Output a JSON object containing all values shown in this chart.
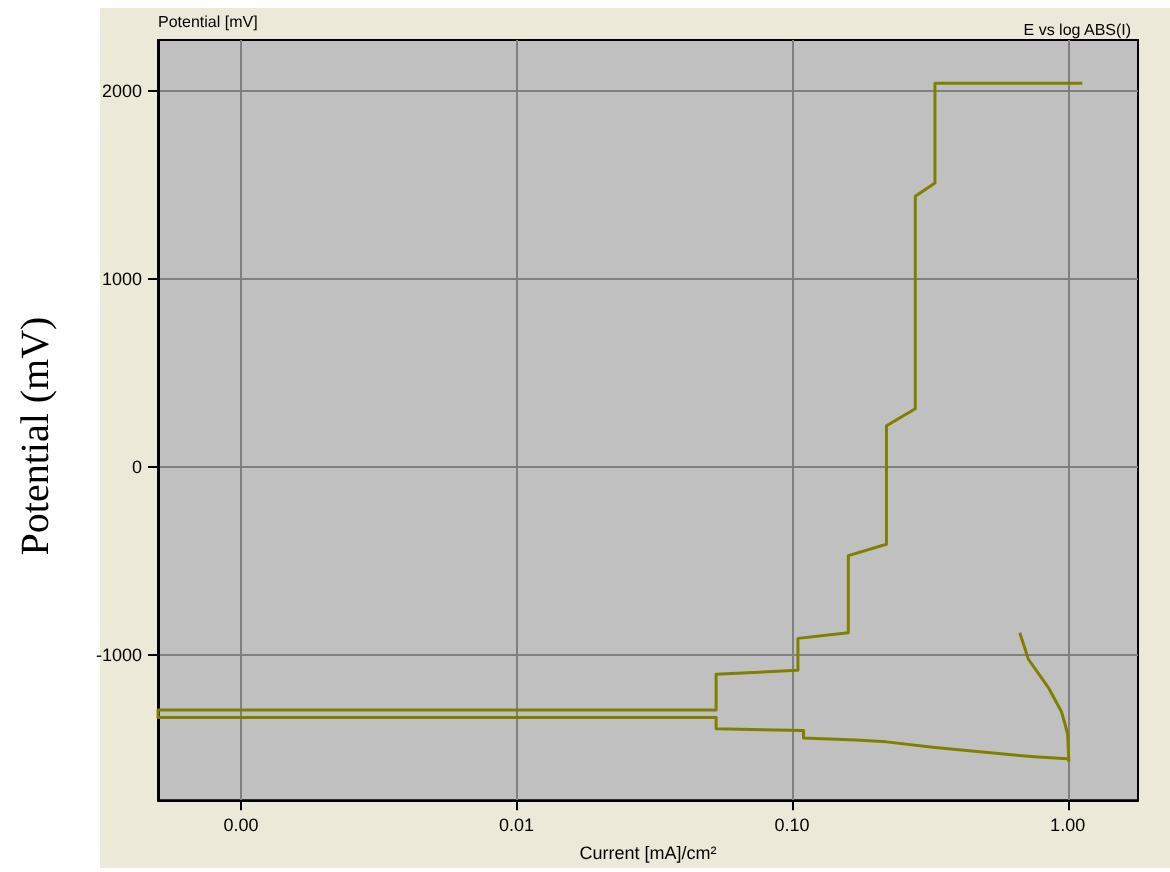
{
  "chart_data": {
    "type": "line",
    "title": "E vs log ABS(I)",
    "xlabel": "Current [mA]/cm²",
    "ylabel": "Potential (mV)",
    "annotations": [
      "Potential [mV]"
    ],
    "log": "x",
    "grid": true,
    "marker": "none",
    "line_style": "solid",
    "xlim": [
      0.0005,
      1.8
    ],
    "xticks": [
      {
        "value": 0.001,
        "label": "0.00"
      },
      {
        "value": 0.01,
        "label": "0.01"
      },
      {
        "value": 0.1,
        "label": "0.10"
      },
      {
        "value": 1,
        "label": "1.00"
      }
    ],
    "ylim": [
      -1770,
      2270
    ],
    "yticks": [
      -1000,
      0,
      1000,
      2000
    ],
    "series": [
      {
        "color": "#808000",
        "x": [
          0.67,
          0.72,
          0.85,
          0.95,
          0.98,
          1.0,
          1.01,
          1.0,
          0.78,
          0.64,
          0.33,
          0.22,
          0.17,
          0.11,
          0.11,
          0.053,
          0.053,
          0.0005,
          0.0005,
          0.053,
          0.053,
          0.105,
          0.105,
          0.16,
          0.16,
          0.22,
          0.22,
          0.28,
          0.28,
          0.33,
          0.33,
          1.13
        ],
        "values": [
          -880,
          -1020,
          -1170,
          -1300,
          -1370,
          -1420,
          -1560,
          -1550,
          -1540,
          -1530,
          -1490,
          -1460,
          -1450,
          -1440,
          -1400,
          -1390,
          -1330,
          -1330,
          -1290,
          -1290,
          -1100,
          -1080,
          -910,
          -880,
          -470,
          -410,
          220,
          310,
          1440,
          1510,
          2040,
          2040
        ]
      }
    ]
  }
}
